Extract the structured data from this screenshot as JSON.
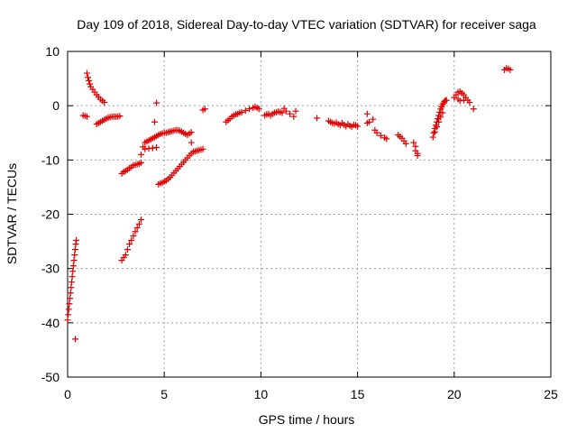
{
  "chart_data": {
    "type": "scatter",
    "title": "Day 109 of 2018, Sidereal Day-to-day VTEC variation (SDTVAR) for receiver saga",
    "xlabel": "GPS time / hours",
    "ylabel": "SDTVAR / TECUs",
    "xlim": [
      0,
      25
    ],
    "ylim": [
      -50,
      10
    ],
    "xticks": [
      0,
      5,
      10,
      15,
      20,
      25
    ],
    "xtick_labels": [
      "0",
      "5",
      "10",
      "15",
      "20",
      "25"
    ],
    "yticks": [
      -50,
      -40,
      -30,
      -20,
      -10,
      0,
      10
    ],
    "ytick_labels": [
      "-50",
      "-40",
      "-30",
      "-20",
      "-10",
      "0",
      "10"
    ],
    "grid": true,
    "marker": "+",
    "color": "#e00000",
    "series": [
      {
        "name": "sdtvar",
        "points": [
          [
            0.0,
            -39.5
          ],
          [
            0.03,
            -38.5
          ],
          [
            0.06,
            -37.5
          ],
          [
            0.09,
            -36.5
          ],
          [
            0.12,
            -35.5
          ],
          [
            0.15,
            -34.5
          ],
          [
            0.18,
            -33.5
          ],
          [
            0.21,
            -32.5
          ],
          [
            0.24,
            -31.5
          ],
          [
            0.27,
            -30.5
          ],
          [
            0.3,
            -29.5
          ],
          [
            0.33,
            -28.5
          ],
          [
            0.36,
            -27.5
          ],
          [
            0.39,
            -26.5
          ],
          [
            0.42,
            -25.5
          ],
          [
            0.45,
            -24.8
          ],
          [
            0.4,
            -43.0
          ],
          [
            0.8,
            -1.8
          ],
          [
            0.9,
            -1.9
          ],
          [
            1.0,
            -2.0
          ],
          [
            1.0,
            6.0
          ],
          [
            1.05,
            5.2
          ],
          [
            1.1,
            4.6
          ],
          [
            1.15,
            4.0
          ],
          [
            1.2,
            3.5
          ],
          [
            1.3,
            3.0
          ],
          [
            1.4,
            2.5
          ],
          [
            1.5,
            2.0
          ],
          [
            1.6,
            1.6
          ],
          [
            1.7,
            1.2
          ],
          [
            1.8,
            0.9
          ],
          [
            1.9,
            0.6
          ],
          [
            1.5,
            -3.4
          ],
          [
            1.6,
            -3.2
          ],
          [
            1.7,
            -3.0
          ],
          [
            1.8,
            -2.8
          ],
          [
            1.9,
            -2.6
          ],
          [
            2.0,
            -2.4
          ],
          [
            2.1,
            -2.2
          ],
          [
            2.2,
            -2.1
          ],
          [
            2.3,
            -2.0
          ],
          [
            2.4,
            -2.0
          ],
          [
            2.5,
            -2.0
          ],
          [
            2.6,
            -2.0
          ],
          [
            2.7,
            -1.9
          ],
          [
            2.8,
            -12.5
          ],
          [
            2.9,
            -12.2
          ],
          [
            3.0,
            -12.0
          ],
          [
            3.1,
            -11.8
          ],
          [
            3.2,
            -11.5
          ],
          [
            3.3,
            -11.3
          ],
          [
            3.4,
            -11.0
          ],
          [
            3.5,
            -10.9
          ],
          [
            3.6,
            -10.8
          ],
          [
            3.7,
            -10.7
          ],
          [
            3.8,
            -10.5
          ],
          [
            2.8,
            -28.5
          ],
          [
            2.9,
            -28.0
          ],
          [
            3.0,
            -27.5
          ],
          [
            3.1,
            -26.5
          ],
          [
            3.2,
            -25.5
          ],
          [
            3.3,
            -24.8
          ],
          [
            3.4,
            -24.0
          ],
          [
            3.5,
            -23.2
          ],
          [
            3.6,
            -22.5
          ],
          [
            3.7,
            -21.8
          ],
          [
            3.8,
            -21.0
          ],
          [
            3.8,
            -9.0
          ],
          [
            3.9,
            -7.6
          ],
          [
            4.0,
            -6.8
          ],
          [
            4.1,
            -6.6
          ],
          [
            4.2,
            -6.4
          ],
          [
            4.3,
            -6.2
          ],
          [
            4.4,
            -6.0
          ],
          [
            4.5,
            -5.8
          ],
          [
            4.6,
            -5.6
          ],
          [
            4.7,
            -5.4
          ],
          [
            4.8,
            -5.2
          ],
          [
            4.9,
            -5.1
          ],
          [
            5.0,
            -5.0
          ],
          [
            5.1,
            -5.0
          ],
          [
            5.2,
            -4.9
          ],
          [
            5.3,
            -4.8
          ],
          [
            5.4,
            -4.7
          ],
          [
            5.5,
            -4.6
          ],
          [
            5.6,
            -4.5
          ],
          [
            5.7,
            -4.5
          ],
          [
            5.8,
            -4.6
          ],
          [
            5.9,
            -4.8
          ],
          [
            6.0,
            -5.0
          ],
          [
            6.1,
            -5.2
          ],
          [
            6.2,
            -5.4
          ],
          [
            6.3,
            -5.1
          ],
          [
            6.4,
            -4.9
          ],
          [
            4.0,
            -8.0
          ],
          [
            4.2,
            -7.9
          ],
          [
            4.4,
            -7.8
          ],
          [
            4.6,
            -7.7
          ],
          [
            4.5,
            -3.0
          ],
          [
            4.6,
            0.5
          ],
          [
            6.4,
            -6.8
          ],
          [
            4.7,
            -14.5
          ],
          [
            4.8,
            -14.3
          ],
          [
            4.9,
            -14.2
          ],
          [
            5.0,
            -14.0
          ],
          [
            5.1,
            -13.8
          ],
          [
            5.2,
            -13.5
          ],
          [
            5.3,
            -13.2
          ],
          [
            5.4,
            -12.8
          ],
          [
            5.5,
            -12.4
          ],
          [
            5.6,
            -12.0
          ],
          [
            5.7,
            -11.6
          ],
          [
            5.8,
            -11.2
          ],
          [
            5.9,
            -10.8
          ],
          [
            6.0,
            -10.4
          ],
          [
            6.1,
            -10.0
          ],
          [
            6.2,
            -9.6
          ],
          [
            6.3,
            -9.2
          ],
          [
            6.4,
            -8.8
          ],
          [
            6.5,
            -8.5
          ],
          [
            6.6,
            -8.4
          ],
          [
            6.7,
            -8.3
          ],
          [
            6.8,
            -8.2
          ],
          [
            6.9,
            -8.1
          ],
          [
            7.0,
            -8.0
          ],
          [
            7.0,
            -0.8
          ],
          [
            7.1,
            -0.6
          ],
          [
            8.2,
            -3.0
          ],
          [
            8.3,
            -2.7
          ],
          [
            8.4,
            -2.4
          ],
          [
            8.5,
            -2.0
          ],
          [
            8.6,
            -1.8
          ],
          [
            8.7,
            -1.6
          ],
          [
            8.8,
            -1.5
          ],
          [
            8.9,
            -1.3
          ],
          [
            9.0,
            -1.2
          ],
          [
            9.2,
            -0.9
          ],
          [
            9.4,
            -0.6
          ],
          [
            9.6,
            -0.4
          ],
          [
            9.7,
            -0.2
          ],
          [
            9.8,
            -0.4
          ],
          [
            9.9,
            -0.6
          ],
          [
            10.2,
            -1.8
          ],
          [
            10.3,
            -1.6
          ],
          [
            10.4,
            -1.5
          ],
          [
            10.5,
            -1.8
          ],
          [
            10.6,
            -1.5
          ],
          [
            10.7,
            -1.3
          ],
          [
            10.8,
            -1.2
          ],
          [
            10.9,
            -1.1
          ],
          [
            11.0,
            -1.2
          ],
          [
            11.1,
            -1.3
          ],
          [
            11.2,
            -0.5
          ],
          [
            11.3,
            -1.0
          ],
          [
            11.5,
            -1.5
          ],
          [
            11.7,
            -2.0
          ],
          [
            11.8,
            -1.0
          ],
          [
            12.9,
            -2.3
          ],
          [
            13.5,
            -2.8
          ],
          [
            13.6,
            -3.0
          ],
          [
            13.7,
            -3.2
          ],
          [
            13.8,
            -3.3
          ],
          [
            13.9,
            -3.1
          ],
          [
            14.0,
            -3.4
          ],
          [
            14.1,
            -3.6
          ],
          [
            14.2,
            -3.2
          ],
          [
            14.3,
            -3.5
          ],
          [
            14.4,
            -3.8
          ],
          [
            14.5,
            -3.4
          ],
          [
            14.6,
            -3.7
          ],
          [
            14.7,
            -3.9
          ],
          [
            14.8,
            -3.5
          ],
          [
            14.9,
            -3.6
          ],
          [
            15.0,
            -3.8
          ],
          [
            15.5,
            -1.5
          ],
          [
            15.6,
            -3.0
          ],
          [
            15.8,
            -2.5
          ],
          [
            15.5,
            -3.2
          ],
          [
            15.9,
            -4.5
          ],
          [
            16.0,
            -5.0
          ],
          [
            16.2,
            -5.5
          ],
          [
            16.4,
            -5.9
          ],
          [
            16.5,
            -6.1
          ],
          [
            17.1,
            -5.4
          ],
          [
            17.2,
            -5.7
          ],
          [
            17.3,
            -6.0
          ],
          [
            17.4,
            -6.5
          ],
          [
            17.5,
            -7.0
          ],
          [
            17.9,
            -6.8
          ],
          [
            18.0,
            -7.5
          ],
          [
            18.0,
            -8.3
          ],
          [
            18.1,
            -8.8
          ],
          [
            18.1,
            -9.2
          ],
          [
            18.9,
            -5.8
          ],
          [
            18.95,
            -5.0
          ],
          [
            19.0,
            -4.2
          ],
          [
            19.05,
            -3.6
          ],
          [
            19.1,
            -3.0
          ],
          [
            19.15,
            -2.4
          ],
          [
            19.2,
            -1.8
          ],
          [
            19.25,
            -1.2
          ],
          [
            19.3,
            -0.6
          ],
          [
            19.35,
            -0.2
          ],
          [
            19.4,
            0.2
          ],
          [
            19.45,
            0.5
          ],
          [
            19.5,
            0.8
          ],
          [
            19.55,
            1.0
          ],
          [
            19.6,
            1.0
          ],
          [
            19.0,
            -4.8
          ],
          [
            19.1,
            -3.9
          ],
          [
            19.2,
            -3.0
          ],
          [
            19.3,
            -2.1
          ],
          [
            19.4,
            -1.3
          ],
          [
            20.0,
            1.5
          ],
          [
            20.1,
            2.0
          ],
          [
            20.2,
            2.5
          ],
          [
            20.3,
            2.6
          ],
          [
            20.4,
            2.3
          ],
          [
            20.5,
            2.0
          ],
          [
            20.6,
            1.5
          ],
          [
            20.7,
            1.0
          ],
          [
            20.8,
            0.6
          ],
          [
            20.2,
            1.2
          ],
          [
            20.3,
            0.9
          ],
          [
            20.5,
            1.0
          ],
          [
            21.0,
            -0.6
          ],
          [
            22.6,
            6.6
          ],
          [
            22.7,
            6.9
          ],
          [
            22.8,
            6.8
          ],
          [
            22.9,
            6.6
          ]
        ]
      }
    ]
  }
}
